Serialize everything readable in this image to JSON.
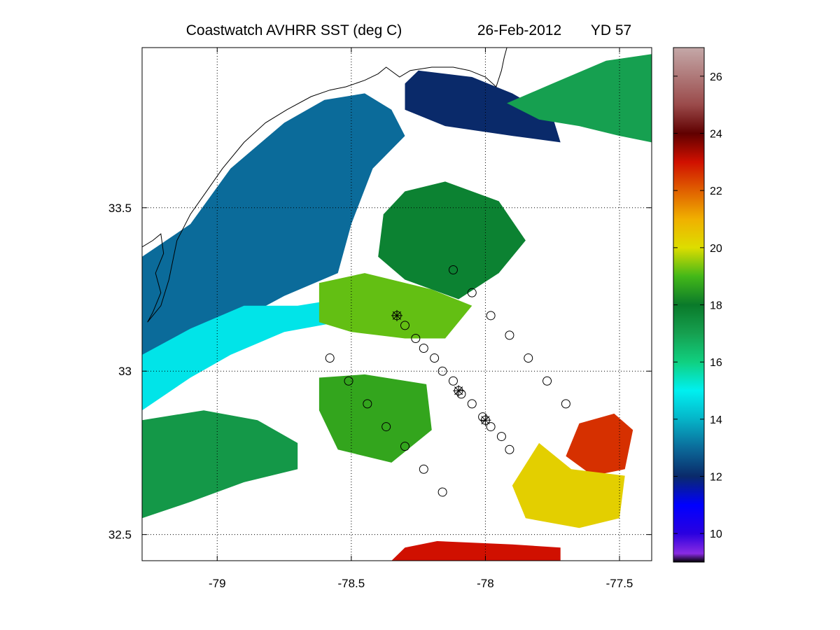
{
  "title": {
    "product": "Coastwatch   AVHRR   SST  (deg C)",
    "date": "26-Feb-2012",
    "yearday": "YD 57"
  },
  "chart_data": {
    "type": "heatmap",
    "title": "Coastwatch   AVHRR   SST  (deg C)",
    "date": "26-Feb-2012",
    "yearday": "YD 57",
    "xlabel": "",
    "ylabel": "",
    "xlim": [
      -79.28,
      -77.38
    ],
    "ylim": [
      32.42,
      33.99
    ],
    "x_ticks": [
      -79,
      -78.5,
      -78,
      -77.5
    ],
    "x_tick_labels": [
      "-79",
      "-78.5",
      "-78",
      "-77.5"
    ],
    "y_ticks": [
      32.5,
      33,
      33.5
    ],
    "y_tick_labels": [
      "32.5",
      "33",
      "33.5"
    ],
    "grid": "dotted",
    "colorbar": {
      "range": [
        9,
        27
      ],
      "ticks": [
        10,
        12,
        14,
        16,
        18,
        20,
        22,
        24,
        26
      ],
      "tick_labels": [
        "10",
        "12",
        "14",
        "16",
        "18",
        "20",
        "22",
        "24",
        "26"
      ],
      "colors": [
        {
          "value": 9,
          "color": "#000000"
        },
        {
          "value": 9.3,
          "color": "#8a2be2"
        },
        {
          "value": 10,
          "color": "#2a00e0"
        },
        {
          "value": 11,
          "color": "#0000ff"
        },
        {
          "value": 12,
          "color": "#0a2a6a"
        },
        {
          "value": 13,
          "color": "#0b6b9a"
        },
        {
          "value": 14,
          "color": "#05b4c8"
        },
        {
          "value": 15,
          "color": "#00f0f0"
        },
        {
          "value": 16,
          "color": "#10d080"
        },
        {
          "value": 17,
          "color": "#16a050"
        },
        {
          "value": 18,
          "color": "#0a7a2a"
        },
        {
          "value": 19,
          "color": "#44b818"
        },
        {
          "value": 20,
          "color": "#dddd00"
        },
        {
          "value": 21,
          "color": "#f0b000"
        },
        {
          "value": 22,
          "color": "#e06000"
        },
        {
          "value": 23,
          "color": "#d01000"
        },
        {
          "value": 24,
          "color": "#600000"
        },
        {
          "value": 25,
          "color": "#9a4a4a"
        },
        {
          "value": 27,
          "color": "#c4a8a8"
        }
      ]
    },
    "sst_regions": [
      {
        "name": "nearshore cold band",
        "sst": 13.0,
        "poly": [
          [
            -79.28,
            33.35
          ],
          [
            -79.1,
            33.45
          ],
          [
            -78.95,
            33.62
          ],
          [
            -78.75,
            33.76
          ],
          [
            -78.6,
            33.83
          ],
          [
            -78.45,
            33.85
          ],
          [
            -78.35,
            33.8
          ],
          [
            -78.3,
            33.72
          ],
          [
            -78.42,
            33.62
          ],
          [
            -78.5,
            33.45
          ],
          [
            -78.55,
            33.3
          ],
          [
            -78.75,
            33.23
          ],
          [
            -79.0,
            33.12
          ],
          [
            -79.28,
            32.98
          ]
        ]
      },
      {
        "name": "cold pool north",
        "sst": 12.0,
        "poly": [
          [
            -78.25,
            33.92
          ],
          [
            -78.05,
            33.9
          ],
          [
            -77.9,
            33.85
          ],
          [
            -77.75,
            33.78
          ],
          [
            -77.72,
            33.7
          ],
          [
            -77.9,
            33.72
          ],
          [
            -78.15,
            33.75
          ],
          [
            -78.3,
            33.8
          ],
          [
            -78.3,
            33.88
          ]
        ]
      },
      {
        "name": "cyan filament",
        "sst": 14.8,
        "poly": [
          [
            -79.28,
            33.05
          ],
          [
            -79.1,
            33.13
          ],
          [
            -78.9,
            33.2
          ],
          [
            -78.7,
            33.2
          ],
          [
            -78.55,
            33.22
          ],
          [
            -78.55,
            33.15
          ],
          [
            -78.75,
            33.12
          ],
          [
            -78.95,
            33.05
          ],
          [
            -79.1,
            32.98
          ],
          [
            -79.28,
            32.88
          ]
        ]
      },
      {
        "name": "offshore green east",
        "sst": 17.0,
        "poly": [
          [
            -77.92,
            33.82
          ],
          [
            -77.75,
            33.88
          ],
          [
            -77.55,
            33.95
          ],
          [
            -77.38,
            33.97
          ],
          [
            -77.38,
            33.7
          ],
          [
            -77.5,
            33.72
          ],
          [
            -77.65,
            33.75
          ],
          [
            -77.8,
            33.77
          ]
        ]
      },
      {
        "name": "mid shelf green",
        "sst": 17.8,
        "poly": [
          [
            -78.3,
            33.55
          ],
          [
            -78.15,
            33.58
          ],
          [
            -77.95,
            33.52
          ],
          [
            -77.85,
            33.4
          ],
          [
            -77.95,
            33.3
          ],
          [
            -78.1,
            33.22
          ],
          [
            -78.3,
            33.28
          ],
          [
            -78.4,
            33.35
          ],
          [
            -78.38,
            33.48
          ]
        ]
      },
      {
        "name": "mid shelf yellow green",
        "sst": 19.2,
        "poly": [
          [
            -78.62,
            33.27
          ],
          [
            -78.45,
            33.3
          ],
          [
            -78.2,
            33.25
          ],
          [
            -78.05,
            33.2
          ],
          [
            -78.15,
            33.1
          ],
          [
            -78.3,
            33.1
          ],
          [
            -78.5,
            33.12
          ],
          [
            -78.62,
            33.15
          ]
        ]
      },
      {
        "name": "southern green patch",
        "sst": 18.7,
        "poly": [
          [
            -78.62,
            32.98
          ],
          [
            -78.45,
            32.99
          ],
          [
            -78.22,
            32.96
          ],
          [
            -78.2,
            32.82
          ],
          [
            -78.35,
            32.72
          ],
          [
            -78.55,
            32.76
          ],
          [
            -78.62,
            32.88
          ]
        ]
      },
      {
        "name": "southwest green band",
        "sst": 17.2,
        "poly": [
          [
            -79.28,
            32.85
          ],
          [
            -79.05,
            32.88
          ],
          [
            -78.85,
            32.85
          ],
          [
            -78.7,
            32.78
          ],
          [
            -78.7,
            32.7
          ],
          [
            -78.9,
            32.66
          ],
          [
            -79.1,
            32.6
          ],
          [
            -79.28,
            32.55
          ]
        ]
      },
      {
        "name": "warm core southeast",
        "sst": 22.6,
        "poly": [
          [
            -77.65,
            32.84
          ],
          [
            -77.52,
            32.87
          ],
          [
            -77.45,
            32.82
          ],
          [
            -77.48,
            32.7
          ],
          [
            -77.6,
            32.68
          ],
          [
            -77.7,
            32.74
          ]
        ]
      },
      {
        "name": "warm yellow southeast",
        "sst": 20.3,
        "poly": [
          [
            -77.8,
            32.78
          ],
          [
            -77.68,
            32.7
          ],
          [
            -77.48,
            32.68
          ],
          [
            -77.5,
            32.55
          ],
          [
            -77.65,
            32.52
          ],
          [
            -77.85,
            32.55
          ],
          [
            -77.9,
            32.65
          ]
        ]
      },
      {
        "name": "hot southern strip",
        "sst": 23.0,
        "poly": [
          [
            -78.18,
            32.48
          ],
          [
            -77.9,
            32.47
          ],
          [
            -77.72,
            32.46
          ],
          [
            -77.72,
            32.42
          ],
          [
            -78.35,
            32.42
          ],
          [
            -78.3,
            32.46
          ]
        ]
      }
    ],
    "stations_circle": [
      {
        "lon": -78.12,
        "lat": 33.31
      },
      {
        "lon": -78.05,
        "lat": 33.24
      },
      {
        "lon": -77.98,
        "lat": 33.17
      },
      {
        "lon": -77.91,
        "lat": 33.11
      },
      {
        "lon": -77.84,
        "lat": 33.04
      },
      {
        "lon": -77.77,
        "lat": 32.97
      },
      {
        "lon": -77.7,
        "lat": 32.9
      },
      {
        "lon": -78.3,
        "lat": 33.14
      },
      {
        "lon": -78.26,
        "lat": 33.1
      },
      {
        "lon": -78.23,
        "lat": 33.07
      },
      {
        "lon": -78.19,
        "lat": 33.04
      },
      {
        "lon": -78.16,
        "lat": 33.0
      },
      {
        "lon": -78.12,
        "lat": 32.97
      },
      {
        "lon": -78.09,
        "lat": 32.93
      },
      {
        "lon": -78.05,
        "lat": 32.9
      },
      {
        "lon": -78.01,
        "lat": 32.86
      },
      {
        "lon": -77.98,
        "lat": 32.83
      },
      {
        "lon": -77.94,
        "lat": 32.8
      },
      {
        "lon": -77.91,
        "lat": 32.76
      },
      {
        "lon": -78.58,
        "lat": 33.04
      },
      {
        "lon": -78.51,
        "lat": 32.97
      },
      {
        "lon": -78.44,
        "lat": 32.9
      },
      {
        "lon": -78.37,
        "lat": 32.83
      },
      {
        "lon": -78.3,
        "lat": 32.77
      },
      {
        "lon": -78.23,
        "lat": 32.7
      },
      {
        "lon": -78.16,
        "lat": 32.63
      }
    ],
    "stations_star": [
      {
        "lon": -78.33,
        "lat": 33.17
      },
      {
        "lon": -78.1,
        "lat": 32.94
      },
      {
        "lon": -78.0,
        "lat": 32.85
      }
    ],
    "coastline": [
      [
        -79.28,
        33.38
      ],
      [
        -79.24,
        33.4
      ],
      [
        -79.21,
        33.42
      ],
      [
        -79.2,
        33.36
      ],
      [
        -79.23,
        33.3
      ],
      [
        -79.21,
        33.24
      ],
      [
        -79.24,
        33.18
      ],
      [
        -79.26,
        33.15
      ],
      [
        -79.21,
        33.2
      ],
      [
        -79.18,
        33.28
      ],
      [
        -79.15,
        33.4
      ],
      [
        -79.1,
        33.48
      ],
      [
        -79.04,
        33.55
      ],
      [
        -78.98,
        33.62
      ],
      [
        -78.9,
        33.7
      ],
      [
        -78.82,
        33.76
      ],
      [
        -78.74,
        33.8
      ],
      [
        -78.65,
        33.84
      ],
      [
        -78.58,
        33.86
      ],
      [
        -78.52,
        33.87
      ],
      [
        -78.45,
        33.89
      ],
      [
        -78.4,
        33.91
      ],
      [
        -78.37,
        33.93
      ],
      [
        -78.32,
        33.9
      ],
      [
        -78.28,
        33.92
      ],
      [
        -78.2,
        33.93
      ],
      [
        -78.12,
        33.93
      ],
      [
        -78.06,
        33.92
      ],
      [
        -78.0,
        33.9
      ],
      [
        -77.96,
        33.87
      ],
      [
        -77.94,
        33.92
      ],
      [
        -77.93,
        33.96
      ],
      [
        -77.92,
        33.99
      ]
    ]
  }
}
